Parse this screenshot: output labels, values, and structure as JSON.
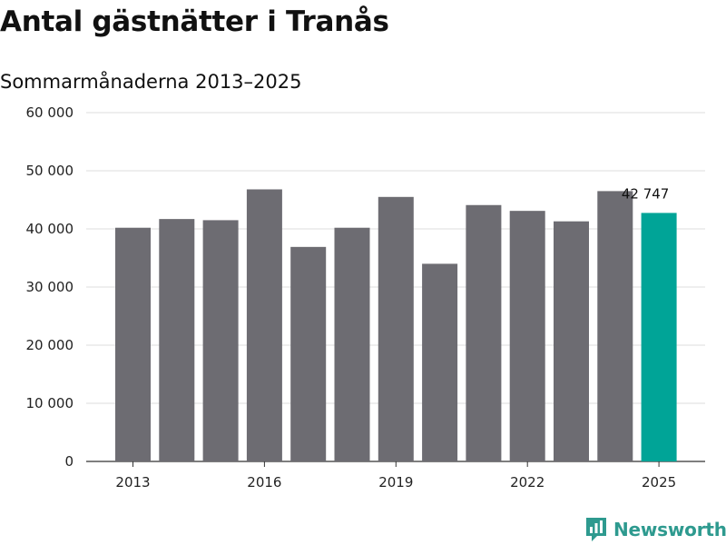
{
  "chart_data": {
    "type": "bar",
    "title": "Antal gästnätter i Tranås",
    "subtitle": "Sommarmånaderna 2013–2025",
    "categories": [
      "2013",
      "2014",
      "2015",
      "2016",
      "2017",
      "2018",
      "2019",
      "2020",
      "2021",
      "2022",
      "2023",
      "2024",
      "2025"
    ],
    "values": [
      40200,
      41700,
      41500,
      46800,
      36900,
      40200,
      45500,
      34000,
      44100,
      43100,
      41300,
      46500,
      42747
    ],
    "x_tick_labels": [
      "2013",
      "2016",
      "2019",
      "2022",
      "2025"
    ],
    "y_ticks": [
      0,
      10000,
      20000,
      30000,
      40000,
      50000,
      60000
    ],
    "y_tick_labels": [
      "0",
      "10 000",
      "20 000",
      "30 000",
      "40 000",
      "50 000",
      "60 000"
    ],
    "ylim": [
      0,
      60000
    ],
    "grid": true,
    "highlight_index": 12,
    "highlight_label": "42 747",
    "colors": {
      "bar": "#6d6c72",
      "highlight": "#00a497",
      "grid": "#dddddd",
      "axis": "#333333"
    }
  },
  "branding": {
    "name": "Newsworthy",
    "color": "#2e9a8f"
  }
}
